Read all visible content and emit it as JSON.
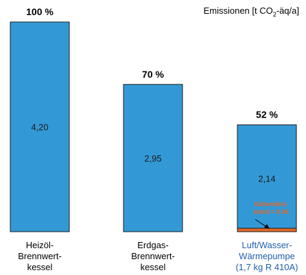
{
  "chart_data": {
    "type": "bar",
    "unit_label": {
      "prefix": "Emissionen [t CO",
      "sub": "2",
      "suffix": "-äq/a]"
    },
    "categories": [
      {
        "lines": [
          "Heizöl-",
          "Brennwert-",
          "kessel"
        ],
        "color": "#000000"
      },
      {
        "lines": [
          "Erdgas-",
          "Brennwert-",
          "kessel"
        ],
        "color": "#000000"
      },
      {
        "lines": [
          "Luft/Wasser-",
          "Wärmepumpe",
          "(1,7 kg R 410A)"
        ],
        "color": "#1f5fa8"
      }
    ],
    "values": [
      4.2,
      2.95,
      2.14
    ],
    "value_labels": [
      "4,20",
      "2,95",
      "2,14"
    ],
    "percent_labels": [
      "100 %",
      "70 %",
      "52 %"
    ],
    "refrigerant_share": {
      "value": 0.06,
      "label_lines": [
        "Kältemittel-",
        "anteil = 0,06"
      ]
    },
    "colors": {
      "bar": "#3399d6",
      "bar_stroke": "#1a1a1a",
      "refrigerant": "#e06a2a"
    },
    "ylim": [
      0,
      4.2
    ]
  }
}
